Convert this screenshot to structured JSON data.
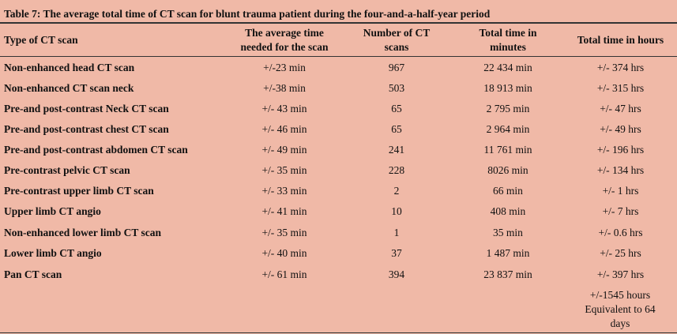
{
  "table": {
    "title": "Table 7: The average total time of CT scan for blunt trauma patient during the four-and-a-half-year period",
    "headers": [
      "Type of CT scan",
      "The average time needed for the scan",
      "Number of CT scans",
      "Total time in minutes",
      "Total time in hours"
    ],
    "rows": [
      [
        "Non-enhanced head CT scan",
        "+/-23 min",
        "967",
        "22 434 min",
        "+/- 374 hrs"
      ],
      [
        "Non-enhanced CT scan neck",
        "+/-38 min",
        "503",
        "18 913 min",
        "+/- 315 hrs"
      ],
      [
        "Pre-and post-contrast Neck CT scan",
        "+/- 43 min",
        "65",
        "2 795 min",
        "+/- 47 hrs"
      ],
      [
        "Pre-and post-contrast chest CT scan",
        "+/- 46 min",
        "65",
        "2 964 min",
        "+/- 49 hrs"
      ],
      [
        "Pre-and post-contrast abdomen CT scan",
        "+/- 49 min",
        "241",
        "11 761 min",
        "+/- 196 hrs"
      ],
      [
        "Pre-contrast pelvic CT scan",
        "+/- 35 min",
        "228",
        "8026 min",
        "+/- 134 hrs"
      ],
      [
        "Pre-contrast upper limb CT scan",
        "+/- 33 min",
        "2",
        "66 min",
        "+/- 1 hrs"
      ],
      [
        "Upper limb CT angio",
        "+/- 41 min",
        "10",
        "408 min",
        "+/- 7 hrs"
      ],
      [
        "Non-enhanced lower limb CT scan",
        "+/- 35 min",
        "1",
        "35 min",
        "+/- 0.6 hrs"
      ],
      [
        "Lower limb CT angio",
        "+/- 40 min",
        "37",
        "1 487 min",
        "+/- 25 hrs"
      ],
      [
        "Pan CT scan",
        "+/- 61 min",
        "394",
        "23 837 min",
        "+/- 397 hrs"
      ]
    ],
    "total": "+/-1545 hours Equivalent to 64 days"
  }
}
